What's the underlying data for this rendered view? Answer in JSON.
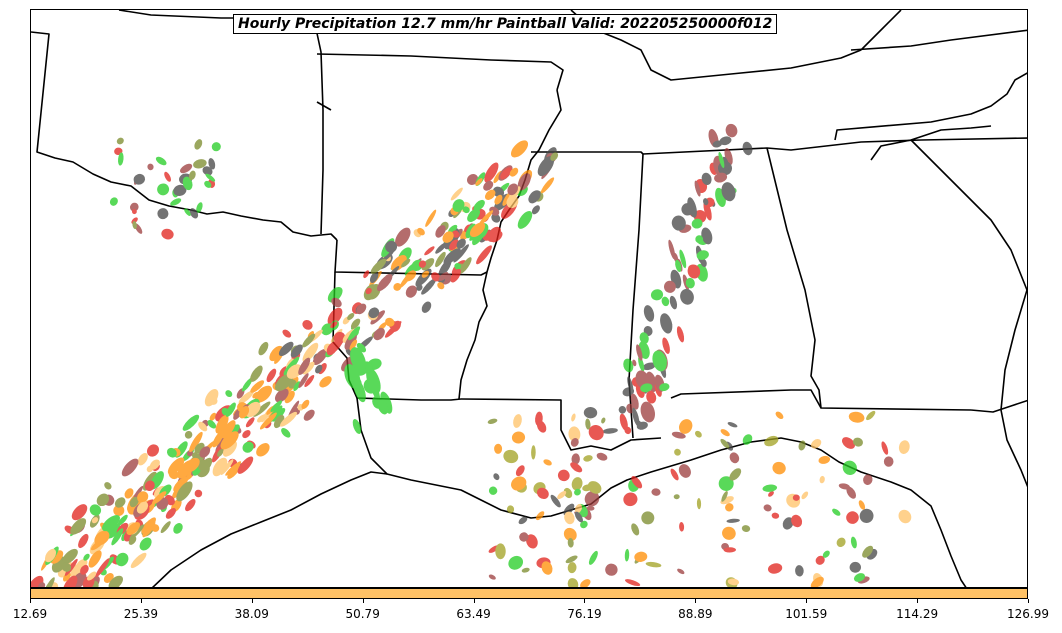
{
  "title": "Hourly Precipitation 12.7 mm/hr Paintball Valid: 202205250000f012",
  "colorbar": {
    "color": "#ffc266",
    "ticks": [
      "12.69",
      "25.39",
      "38.09",
      "50.79",
      "63.49",
      "76.19",
      "88.89",
      "101.59",
      "114.29",
      "126.99"
    ]
  },
  "map": {
    "region": "Southern United States",
    "paintball_colors": [
      "#e0201a",
      "#ff8c00",
      "#ffc266",
      "#22cc22",
      "#7a8a2a",
      "#9b3b3b",
      "#444444",
      "#a0a020"
    ]
  }
}
